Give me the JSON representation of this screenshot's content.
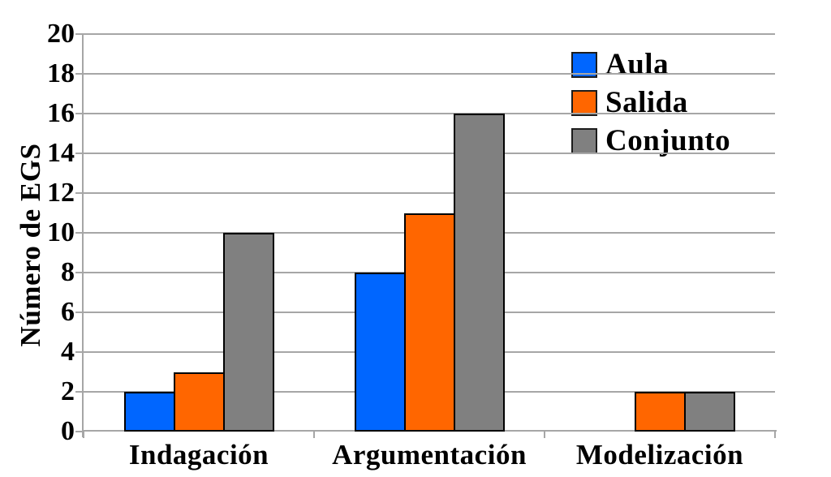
{
  "chart_data": {
    "type": "bar",
    "title": "",
    "categories": [
      "Indagación",
      "Argumentación",
      "Modelización"
    ],
    "series": [
      {
        "name": "Aula",
        "color": "#0066ff",
        "values": [
          2,
          8,
          0
        ]
      },
      {
        "name": "Salida",
        "color": "#ff6600",
        "values": [
          3,
          11,
          2
        ]
      },
      {
        "name": "Conjunto",
        "color": "#808080",
        "values": [
          10,
          16,
          2
        ]
      }
    ],
    "xlabel": "",
    "ylabel": "Número de EGS",
    "ylim": [
      0,
      20
    ],
    "ytick_step": 2,
    "yticks": [
      0,
      2,
      4,
      6,
      8,
      10,
      12,
      14,
      16,
      18,
      20
    ],
    "grid": true,
    "legend_position": "top-right",
    "colors": {
      "background": "#ffffff",
      "grid": "#a6a6a6",
      "axis": "#a6a6a6",
      "bar_border": "#000000",
      "text": "#000000"
    }
  }
}
